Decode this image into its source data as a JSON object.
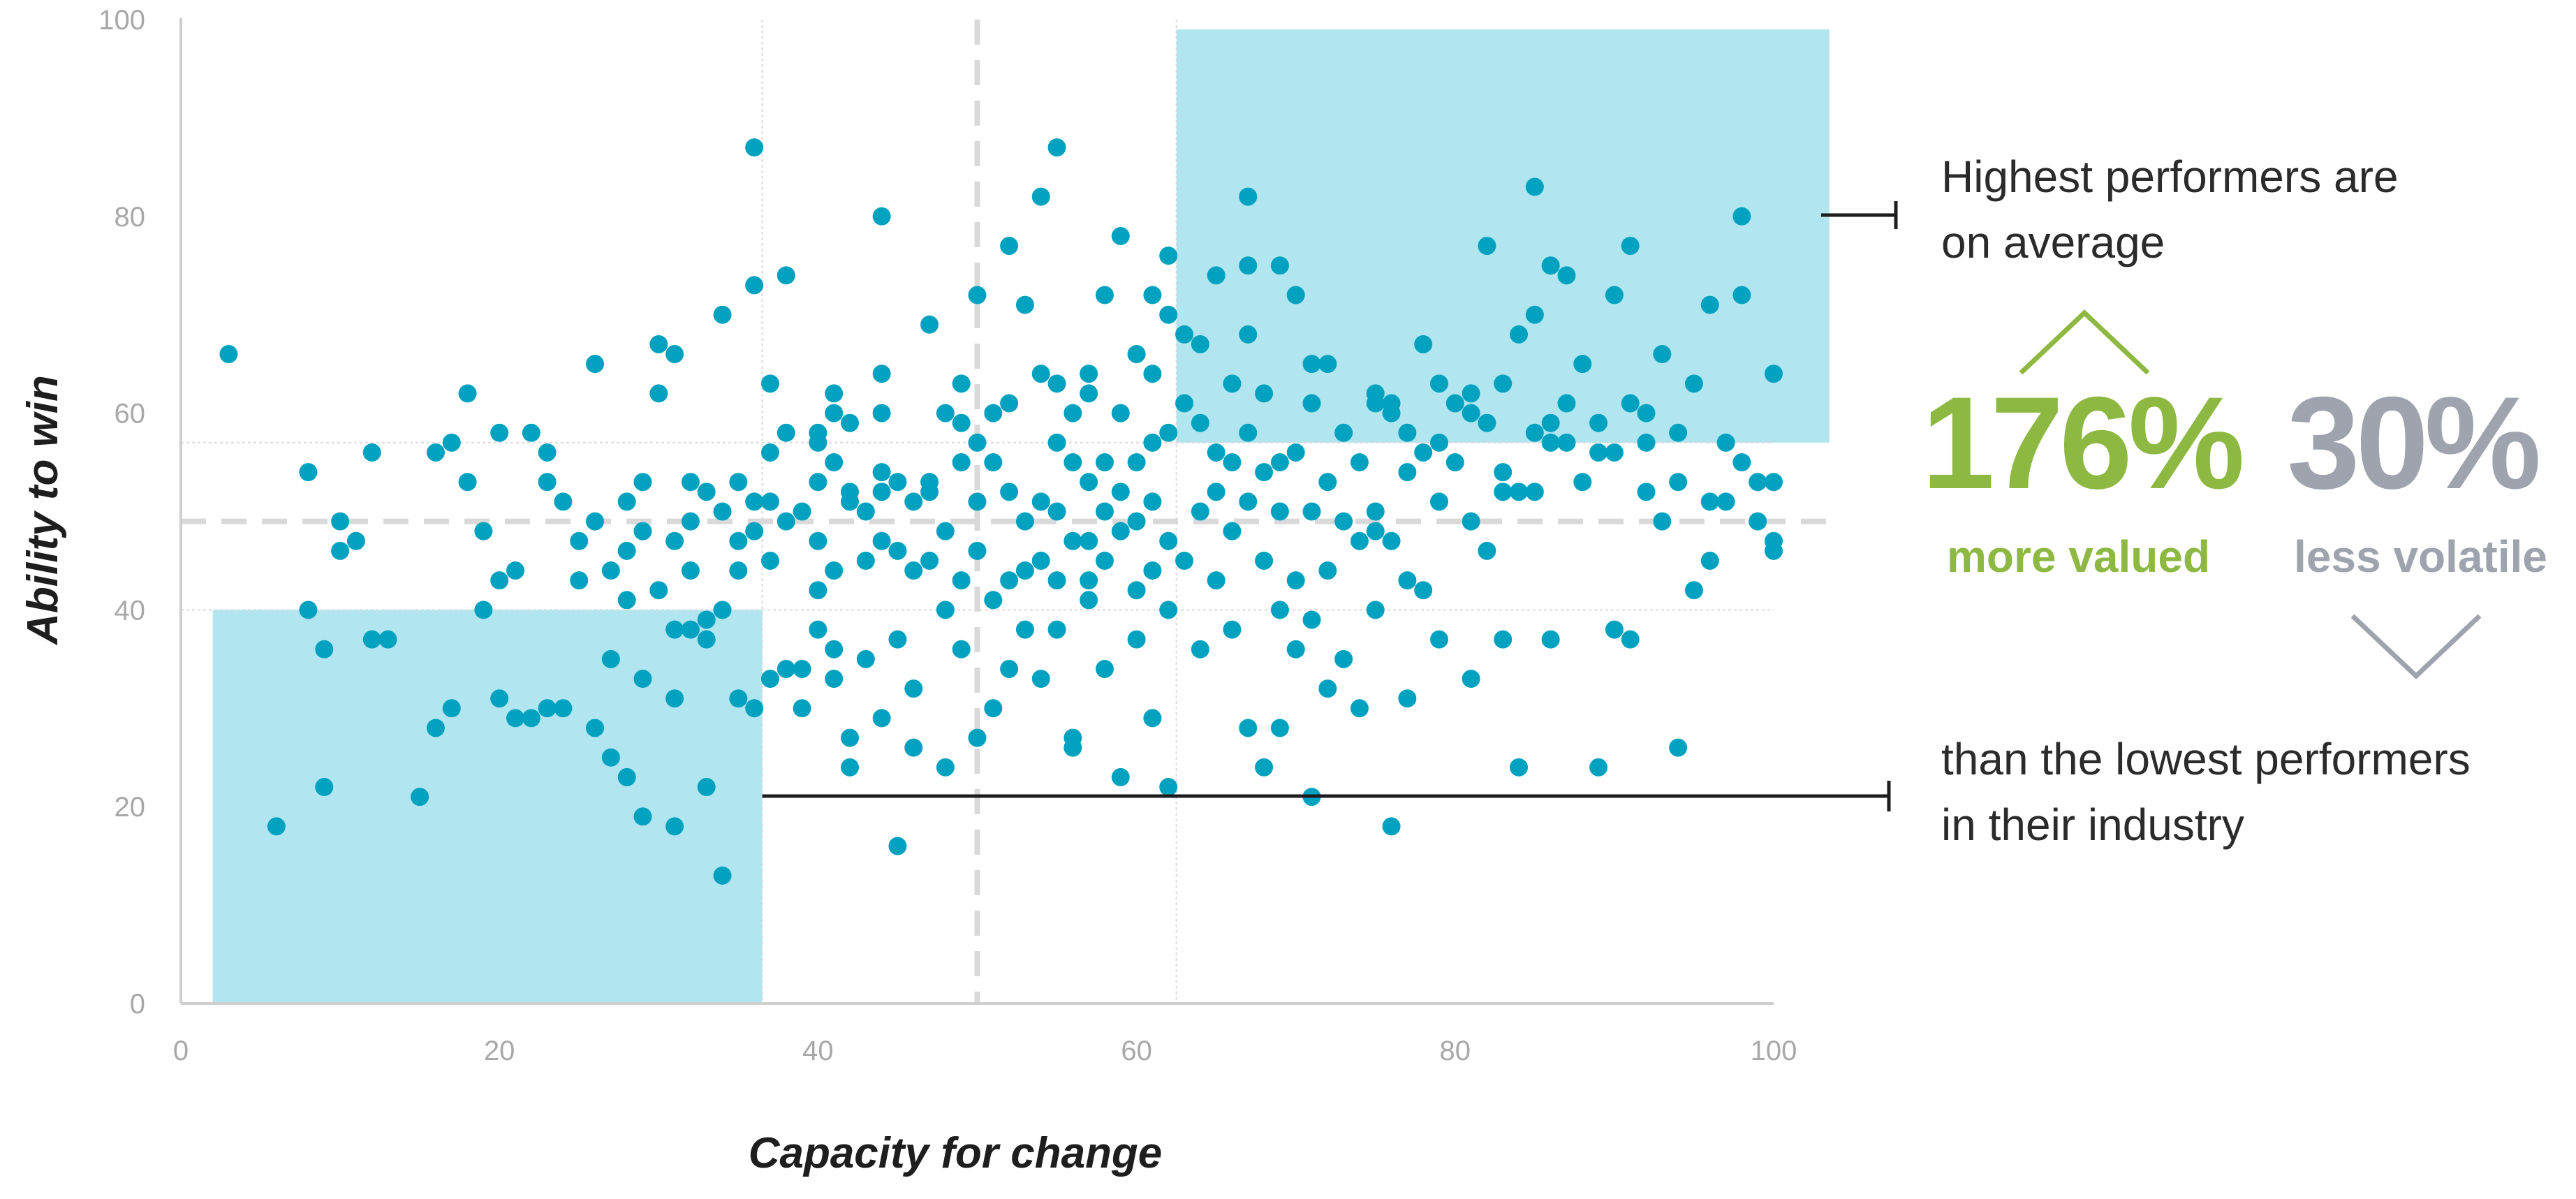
{
  "chart_data": {
    "type": "scatter",
    "xlabel": "Capacity for change",
    "ylabel": "Ability to win",
    "xlim": [
      0,
      100
    ],
    "ylim": [
      0,
      100
    ],
    "xticks": [
      "0",
      "20",
      "40",
      "60",
      "80",
      "100"
    ],
    "yticks": [
      "0",
      "20",
      "40",
      "60",
      "80",
      "100"
    ],
    "grid": false,
    "reference_lines": {
      "x_mean": 50,
      "y_mean": 49
    },
    "highlight_regions": [
      {
        "name": "Highest performers",
        "x": [
          62.5,
          103.5
        ],
        "y": [
          57,
          99
        ]
      },
      {
        "name": "Lowest performers",
        "x": [
          2,
          36.5
        ],
        "y": [
          0,
          40
        ]
      }
    ],
    "point_color": "#00a2c0",
    "region_color": "#b1e5ef",
    "points": [
      [
        3,
        66
      ],
      [
        6,
        18
      ],
      [
        8,
        54
      ],
      [
        8,
        40
      ],
      [
        9,
        36
      ],
      [
        9,
        22
      ],
      [
        10,
        49
      ],
      [
        10,
        46
      ],
      [
        11,
        47
      ],
      [
        12,
        56
      ],
      [
        12,
        37
      ],
      [
        13,
        37
      ],
      [
        15,
        21
      ],
      [
        16,
        28
      ],
      [
        16,
        56
      ],
      [
        17,
        57
      ],
      [
        17,
        30
      ],
      [
        18,
        62
      ],
      [
        18,
        53
      ],
      [
        19,
        48
      ],
      [
        19,
        40
      ],
      [
        20,
        58
      ],
      [
        20,
        43
      ],
      [
        20,
        31
      ],
      [
        21,
        29
      ],
      [
        21,
        44
      ],
      [
        22,
        58
      ],
      [
        22,
        29
      ],
      [
        23,
        56
      ],
      [
        23,
        53
      ],
      [
        23,
        30
      ],
      [
        24,
        51
      ],
      [
        24,
        30
      ],
      [
        25,
        47
      ],
      [
        25,
        43
      ],
      [
        26,
        65
      ],
      [
        26,
        49
      ],
      [
        26,
        28
      ],
      [
        27,
        44
      ],
      [
        27,
        25
      ],
      [
        27,
        35
      ],
      [
        28,
        51
      ],
      [
        28,
        23
      ],
      [
        28,
        46
      ],
      [
        28,
        41
      ],
      [
        29,
        53
      ],
      [
        29,
        48
      ],
      [
        29,
        33
      ],
      [
        29,
        19
      ],
      [
        30,
        67
      ],
      [
        30,
        42
      ],
      [
        30,
        62
      ],
      [
        31,
        38
      ],
      [
        31,
        47
      ],
      [
        31,
        31
      ],
      [
        31,
        18
      ],
      [
        31,
        66
      ],
      [
        32,
        53
      ],
      [
        32,
        44
      ],
      [
        32,
        38
      ],
      [
        32,
        49
      ],
      [
        33,
        22
      ],
      [
        33,
        39
      ],
      [
        33,
        52
      ],
      [
        33,
        37
      ],
      [
        34,
        40
      ],
      [
        34,
        50
      ],
      [
        34,
        13
      ],
      [
        34,
        70
      ],
      [
        35,
        47
      ],
      [
        35,
        53
      ],
      [
        35,
        31
      ],
      [
        35,
        44
      ],
      [
        36,
        87
      ],
      [
        36,
        73
      ],
      [
        36,
        51
      ],
      [
        36,
        48
      ],
      [
        36,
        30
      ],
      [
        37,
        63
      ],
      [
        37,
        56
      ],
      [
        37,
        51
      ],
      [
        37,
        33
      ],
      [
        37,
        45
      ],
      [
        38,
        58
      ],
      [
        38,
        49
      ],
      [
        38,
        74
      ],
      [
        38,
        34
      ],
      [
        39,
        50
      ],
      [
        39,
        34
      ],
      [
        39,
        30
      ],
      [
        40,
        42
      ],
      [
        40,
        58
      ],
      [
        40,
        57
      ],
      [
        40,
        53
      ],
      [
        40,
        47
      ],
      [
        40,
        38
      ],
      [
        41,
        55
      ],
      [
        41,
        60
      ],
      [
        41,
        44
      ],
      [
        41,
        36
      ],
      [
        41,
        62
      ],
      [
        41,
        33
      ],
      [
        42,
        51
      ],
      [
        42,
        59
      ],
      [
        42,
        27
      ],
      [
        42,
        52
      ],
      [
        42,
        24
      ],
      [
        43,
        50
      ],
      [
        43,
        45
      ],
      [
        43,
        35
      ],
      [
        44,
        54
      ],
      [
        44,
        80
      ],
      [
        44,
        64
      ],
      [
        44,
        60
      ],
      [
        44,
        52
      ],
      [
        44,
        47
      ],
      [
        44,
        29
      ],
      [
        45,
        46
      ],
      [
        45,
        37
      ],
      [
        45,
        53
      ],
      [
        45,
        16
      ],
      [
        46,
        51
      ],
      [
        46,
        44
      ],
      [
        46,
        32
      ],
      [
        46,
        26
      ],
      [
        47,
        52
      ],
      [
        47,
        69
      ],
      [
        47,
        53
      ],
      [
        47,
        45
      ],
      [
        48,
        60
      ],
      [
        48,
        48
      ],
      [
        48,
        40
      ],
      [
        48,
        24
      ],
      [
        49,
        59
      ],
      [
        49,
        55
      ],
      [
        49,
        63
      ],
      [
        49,
        43
      ],
      [
        49,
        36
      ],
      [
        50,
        72
      ],
      [
        50,
        51
      ],
      [
        50,
        46
      ],
      [
        50,
        57
      ],
      [
        50,
        27
      ],
      [
        51,
        55
      ],
      [
        51,
        60
      ],
      [
        51,
        41
      ],
      [
        51,
        30
      ],
      [
        52,
        77
      ],
      [
        52,
        61
      ],
      [
        52,
        52
      ],
      [
        52,
        43
      ],
      [
        52,
        34
      ],
      [
        53,
        49
      ],
      [
        53,
        71
      ],
      [
        53,
        44
      ],
      [
        53,
        38
      ],
      [
        54,
        82
      ],
      [
        54,
        64
      ],
      [
        54,
        51
      ],
      [
        54,
        45
      ],
      [
        54,
        33
      ],
      [
        55,
        87
      ],
      [
        55,
        57
      ],
      [
        55,
        63
      ],
      [
        55,
        50
      ],
      [
        55,
        43
      ],
      [
        55,
        38
      ],
      [
        56,
        55
      ],
      [
        56,
        60
      ],
      [
        56,
        47
      ],
      [
        56,
        27
      ],
      [
        56,
        26
      ],
      [
        57,
        47
      ],
      [
        57,
        64
      ],
      [
        57,
        43
      ],
      [
        57,
        41
      ],
      [
        57,
        62
      ],
      [
        57,
        53
      ],
      [
        58,
        72
      ],
      [
        58,
        55
      ],
      [
        58,
        50
      ],
      [
        58,
        45
      ],
      [
        58,
        34
      ],
      [
        59,
        60
      ],
      [
        59,
        52
      ],
      [
        59,
        48
      ],
      [
        59,
        23
      ],
      [
        60,
        66
      ],
      [
        60,
        55
      ],
      [
        60,
        49
      ],
      [
        60,
        42
      ],
      [
        60,
        37
      ],
      [
        61,
        64
      ],
      [
        61,
        57
      ],
      [
        61,
        51
      ],
      [
        61,
        44
      ],
      [
        61,
        29
      ],
      [
        62,
        76
      ],
      [
        62,
        58
      ],
      [
        62,
        47
      ],
      [
        62,
        40
      ],
      [
        62,
        22
      ],
      [
        63,
        61
      ],
      [
        63,
        45
      ],
      [
        64,
        59
      ],
      [
        64,
        50
      ],
      [
        64,
        36
      ],
      [
        64,
        67
      ],
      [
        65,
        74
      ],
      [
        65,
        56
      ],
      [
        65,
        52
      ],
      [
        65,
        43
      ],
      [
        66,
        63
      ],
      [
        66,
        55
      ],
      [
        66,
        48
      ],
      [
        66,
        38
      ],
      [
        67,
        75
      ],
      [
        67,
        68
      ],
      [
        67,
        58
      ],
      [
        67,
        51
      ],
      [
        67,
        28
      ],
      [
        68,
        62
      ],
      [
        68,
        54
      ],
      [
        68,
        45
      ],
      [
        68,
        24
      ],
      [
        69,
        55
      ],
      [
        69,
        40
      ],
      [
        69,
        28
      ],
      [
        69,
        50
      ],
      [
        70,
        72
      ],
      [
        70,
        56
      ],
      [
        70,
        43
      ],
      [
        70,
        36
      ],
      [
        71,
        61
      ],
      [
        71,
        50
      ],
      [
        71,
        39
      ],
      [
        71,
        21
      ],
      [
        72,
        65
      ],
      [
        72,
        53
      ],
      [
        72,
        44
      ],
      [
        72,
        32
      ],
      [
        73,
        49
      ],
      [
        73,
        35
      ],
      [
        74,
        55
      ],
      [
        74,
        47
      ],
      [
        74,
        30
      ],
      [
        75,
        62
      ],
      [
        75,
        50
      ],
      [
        75,
        40
      ],
      [
        75,
        48
      ],
      [
        76,
        18
      ],
      [
        76,
        60
      ],
      [
        76,
        47
      ],
      [
        76,
        61
      ],
      [
        77,
        54
      ],
      [
        77,
        43
      ],
      [
        77,
        31
      ],
      [
        78,
        67
      ],
      [
        78,
        56
      ],
      [
        78,
        42
      ],
      [
        79,
        63
      ],
      [
        79,
        51
      ],
      [
        79,
        37
      ],
      [
        80,
        61
      ],
      [
        80,
        55
      ],
      [
        81,
        62
      ],
      [
        81,
        49
      ],
      [
        81,
        33
      ],
      [
        82,
        77
      ],
      [
        82,
        59
      ],
      [
        82,
        46
      ],
      [
        83,
        63
      ],
      [
        83,
        54
      ],
      [
        83,
        37
      ],
      [
        84,
        68
      ],
      [
        84,
        52
      ],
      [
        84,
        24
      ],
      [
        85,
        52
      ],
      [
        85,
        58
      ],
      [
        86,
        75
      ],
      [
        86,
        57
      ],
      [
        86,
        37
      ],
      [
        87,
        61
      ],
      [
        87,
        57
      ],
      [
        88,
        53
      ],
      [
        89,
        59
      ],
      [
        89,
        24
      ],
      [
        90,
        56
      ],
      [
        90,
        38
      ],
      [
        91,
        77
      ],
      [
        91,
        37
      ],
      [
        92,
        60
      ],
      [
        92,
        57
      ],
      [
        93,
        66
      ],
      [
        94,
        58
      ],
      [
        94,
        26
      ],
      [
        95,
        63
      ],
      [
        96,
        71
      ],
      [
        96,
        51
      ],
      [
        97,
        57
      ],
      [
        98,
        72
      ],
      [
        98,
        55
      ],
      [
        99,
        53
      ],
      [
        100,
        46
      ],
      [
        100,
        53
      ],
      [
        100,
        64
      ],
      [
        59,
        78
      ],
      [
        61,
        72
      ],
      [
        63,
        68
      ],
      [
        67,
        82
      ],
      [
        69,
        75
      ],
      [
        71,
        65
      ],
      [
        73,
        58
      ],
      [
        75,
        61
      ],
      [
        77,
        58
      ],
      [
        79,
        57
      ],
      [
        81,
        60
      ],
      [
        83,
        52
      ],
      [
        85,
        83
      ],
      [
        85,
        70
      ],
      [
        86,
        59
      ],
      [
        87,
        74
      ],
      [
        88,
        65
      ],
      [
        89,
        56
      ],
      [
        90,
        72
      ],
      [
        91,
        61
      ],
      [
        92,
        52
      ],
      [
        93,
        49
      ],
      [
        94,
        53
      ],
      [
        95,
        42
      ],
      [
        96,
        45
      ],
      [
        97,
        51
      ],
      [
        98,
        80
      ],
      [
        99,
        49
      ],
      [
        100,
        47
      ],
      [
        62,
        70
      ]
    ]
  },
  "annotations": {
    "top_text": [
      "Highest performers are",
      "on average"
    ],
    "bottom_text": [
      "than the lowest performers",
      "in their industry"
    ],
    "stat1_value": "176%",
    "stat1_label": "more valued",
    "stat1_color": "#8db842",
    "stat2_value": "30%",
    "stat2_label": "less volatile",
    "stat2_color": "#9ea3ad"
  }
}
